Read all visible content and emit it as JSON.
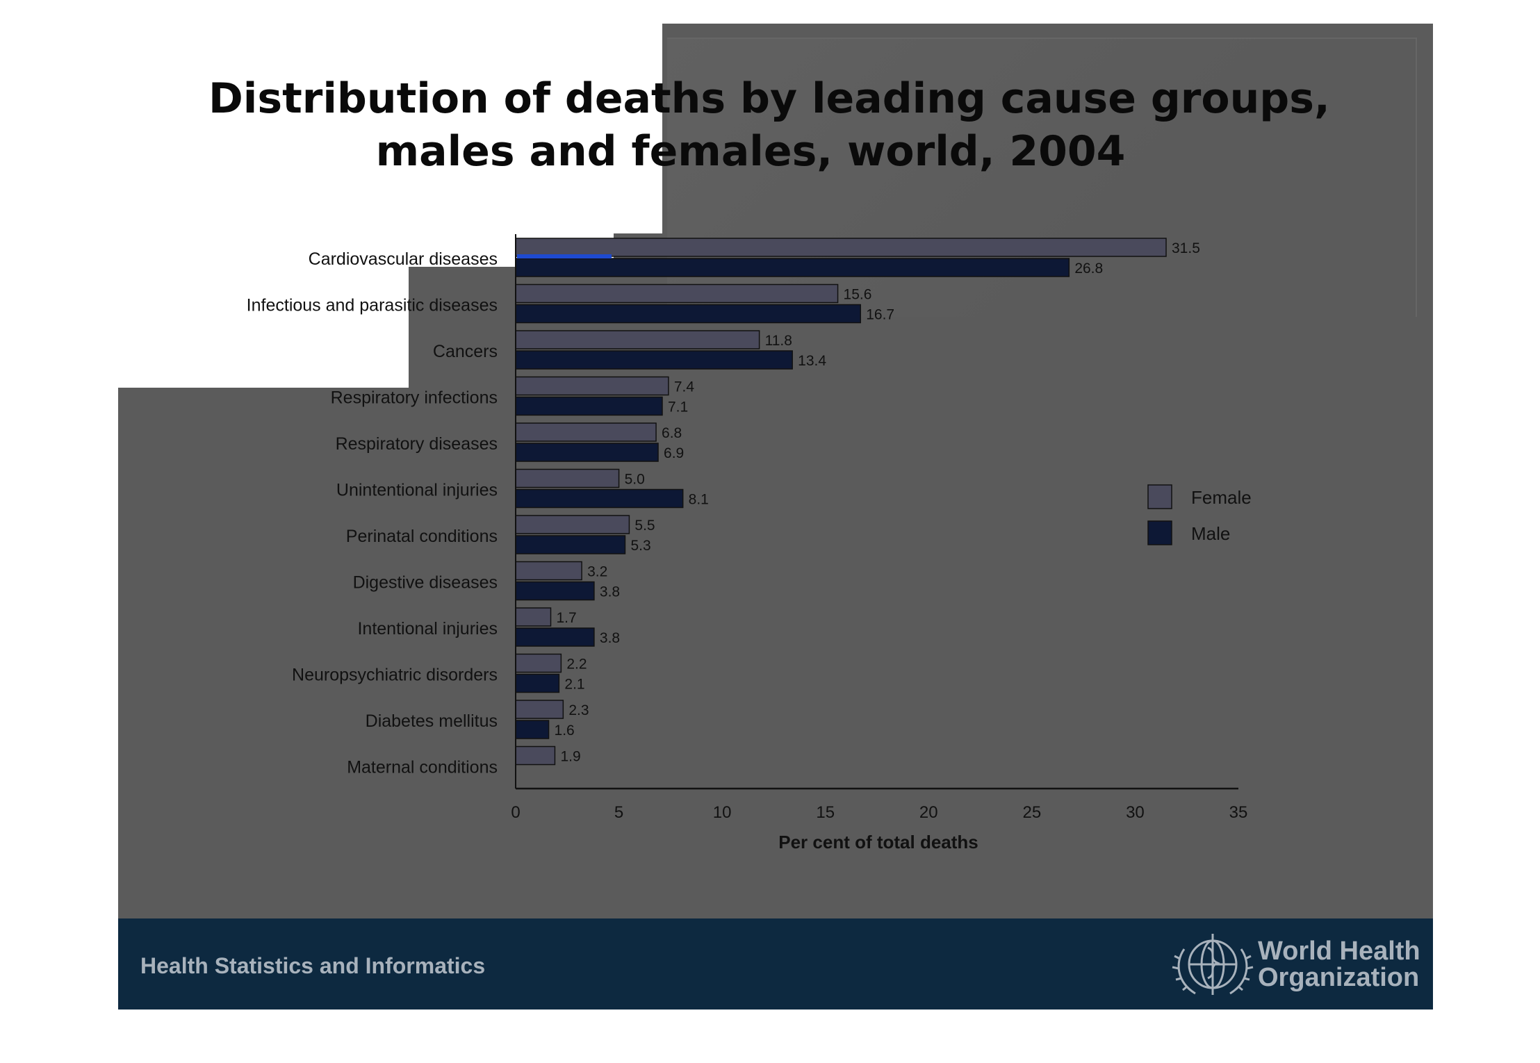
{
  "slide": {
    "title_line1": "Distribution of deaths by leading cause groups,",
    "title_line2": "males and females, world, 2004",
    "footer_text": "Health Statistics and Informatics",
    "org_line1": "World Health",
    "org_line2": "Organization"
  },
  "colors": {
    "female": "#4a4a5c",
    "male": "#0d1835",
    "slide_bg": "#5b5b5b",
    "footer_bg": "#0d2940",
    "highlight": "#1e4ad0"
  },
  "icons": [
    "who-emblem-icon"
  ],
  "chart_data": {
    "type": "bar",
    "orientation": "horizontal",
    "title": "",
    "xlabel": "Per cent of total deaths",
    "ylabel": "",
    "xlim": [
      0,
      35
    ],
    "xticks": [
      0,
      5,
      10,
      15,
      20,
      25,
      30,
      35
    ],
    "grid": false,
    "legend": "right",
    "categories": [
      "Cardiovascular diseases",
      "Infectious and parasitic diseases",
      "Cancers",
      "Respiratory infections",
      "Respiratory diseases",
      "Unintentional injuries",
      "Perinatal conditions",
      "Digestive diseases",
      "Intentional injuries",
      "Neuropsychiatric disorders",
      "Diabetes mellitus",
      "Maternal conditions"
    ],
    "series": [
      {
        "name": "Female",
        "values": [
          31.5,
          15.6,
          11.8,
          7.4,
          6.8,
          5.0,
          5.5,
          3.2,
          1.7,
          2.2,
          2.3,
          1.9
        ],
        "labels": [
          "31.5",
          "15.6",
          "11.8",
          "7.4",
          "6.8",
          "5.0",
          "5.5",
          "3.2",
          "1.7",
          "2.2",
          "2.3",
          "1.9"
        ]
      },
      {
        "name": "Male",
        "values": [
          26.8,
          16.7,
          13.4,
          7.1,
          6.9,
          8.1,
          5.3,
          3.8,
          3.8,
          2.1,
          1.6,
          null
        ],
        "labels": [
          "26.8",
          "16.7",
          "13.4",
          "7.1",
          "6.9",
          "8.1",
          "5.3",
          "3.8",
          "3.8",
          "2.1",
          "1.6",
          ""
        ]
      }
    ]
  }
}
